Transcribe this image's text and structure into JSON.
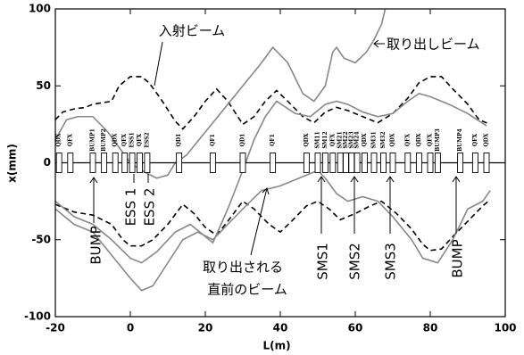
{
  "chart_data": {
    "type": "line",
    "xlabel": "L(m)",
    "ylabel": "x(mm)",
    "xlim": [
      -20,
      100
    ],
    "ylim": [
      -100,
      100
    ],
    "xticks": [
      -20,
      0,
      20,
      40,
      60,
      80,
      100
    ],
    "yticks": [
      -100,
      -50,
      0,
      50,
      100
    ],
    "grid": false,
    "series": [
      {
        "color": "#000000",
        "dashed": true,
        "x": [
          -20,
          -18,
          -15,
          -12,
          -10,
          -5,
          -3,
          0,
          3,
          5,
          8,
          12,
          14,
          17,
          20,
          23,
          26,
          30,
          33,
          36,
          39,
          42,
          46,
          49,
          52,
          55,
          58,
          62,
          66,
          70,
          74,
          77,
          80,
          83,
          86,
          90,
          93,
          96
        ],
        "values": [
          28,
          33,
          35,
          36,
          38,
          40,
          50,
          56,
          56,
          52,
          42,
          27,
          22,
          30,
          40,
          48,
          40,
          25,
          30,
          40,
          47,
          40,
          30,
          26,
          33,
          36,
          34,
          30,
          26,
          32,
          42,
          52,
          56,
          56,
          48,
          38,
          28,
          25
        ]
      },
      {
        "color": "#000000",
        "dashed": true,
        "x": [
          -20,
          -15,
          -10,
          -5,
          -2,
          0,
          3,
          6,
          10,
          14,
          17,
          20,
          23,
          26,
          30,
          33,
          37,
          40,
          43,
          47,
          50,
          53,
          56,
          60,
          64,
          67,
          71,
          75,
          78,
          80,
          83,
          86,
          90,
          94,
          96
        ],
        "values": [
          -27,
          -32,
          -34,
          -40,
          -50,
          -54,
          -54,
          -50,
          -40,
          -27,
          -33,
          -42,
          -47,
          -38,
          -25,
          -30,
          -40,
          -45,
          -38,
          -28,
          -25,
          -30,
          -37,
          -33,
          -28,
          -25,
          -33,
          -43,
          -53,
          -57,
          -56,
          -48,
          -38,
          -28,
          -24
        ]
      },
      {
        "color": "#888888",
        "dashed": false,
        "x": [
          -20,
          -17,
          -14,
          -10,
          -6,
          -3,
          0,
          3,
          7,
          10,
          12,
          15,
          20,
          25,
          30,
          35,
          38,
          42,
          46,
          49,
          52,
          54,
          55,
          57,
          60,
          63,
          65,
          67,
          68
        ],
        "values": [
          15,
          28,
          30,
          30,
          20,
          10,
          0,
          -5,
          -10,
          -8,
          0,
          5,
          20,
          35,
          50,
          65,
          75,
          65,
          45,
          40,
          50,
          72,
          75,
          68,
          65,
          72,
          80,
          90,
          100
        ]
      },
      {
        "color": "#888888",
        "dashed": false,
        "x": [
          -20,
          -15,
          -10,
          -5,
          0,
          3,
          7,
          12,
          16,
          20,
          22,
          26,
          30,
          33,
          36,
          39,
          44,
          48,
          52,
          55,
          58,
          62,
          66,
          70,
          74,
          77,
          80,
          85,
          90,
          95
        ],
        "values": [
          -25,
          -35,
          -40,
          -50,
          -62,
          -65,
          -58,
          -45,
          -40,
          -48,
          -52,
          -30,
          -5,
          15,
          30,
          40,
          32,
          30,
          38,
          40,
          38,
          33,
          30,
          32,
          40,
          45,
          43,
          38,
          32,
          24
        ]
      },
      {
        "color": "#888888",
        "dashed": false,
        "x": [
          -20,
          -15,
          -10,
          -5,
          0,
          3,
          6,
          10,
          14,
          18,
          22,
          26,
          30,
          35,
          40,
          45,
          50,
          52,
          55,
          58,
          62,
          66,
          70,
          75,
          78,
          82,
          86,
          90,
          94,
          96
        ],
        "values": [
          -30,
          -40,
          -45,
          -60,
          -75,
          -83,
          -80,
          -65,
          -50,
          -45,
          -50,
          -40,
          -30,
          -18,
          -15,
          -10,
          -5,
          -10,
          -20,
          -25,
          -22,
          -25,
          -35,
          -50,
          -62,
          -65,
          -50,
          -30,
          -25,
          -18
        ]
      }
    ],
    "elements": [
      {
        "label": "QDX",
        "x": -19
      },
      {
        "label": "QFX",
        "x": -16
      },
      {
        "label": "BUMP1",
        "x": -10
      },
      {
        "label": "BUMP2",
        "x": -7
      },
      {
        "label": "QDX",
        "x": -4
      },
      {
        "label": "QFX",
        "x": -1.5
      },
      {
        "label": "ESS1",
        "x": 0.5
      },
      {
        "label": "QFX",
        "x": 2.5
      },
      {
        "label": "ESS2",
        "x": 4.5
      },
      {
        "label": "QD1",
        "x": 13
      },
      {
        "label": "QF1",
        "x": 22
      },
      {
        "label": "QD1",
        "x": 30
      },
      {
        "label": "QF1",
        "x": 38
      },
      {
        "label": "QDX",
        "x": 47
      },
      {
        "label": "SM11",
        "x": 50
      },
      {
        "label": "SM12",
        "x": 52
      },
      {
        "label": "QFX",
        "x": 54
      },
      {
        "label": "SM21",
        "x": 56
      },
      {
        "label": "SM22",
        "x": 57.5
      },
      {
        "label": "SM23",
        "x": 59
      },
      {
        "label": "SM24",
        "x": 60.5
      },
      {
        "label": "QDX",
        "x": 62.5
      },
      {
        "label": "SM31",
        "x": 65
      },
      {
        "label": "SM32",
        "x": 67.5
      },
      {
        "label": "QDX",
        "x": 70
      },
      {
        "label": "QFX",
        "x": 74
      },
      {
        "label": "QDX",
        "x": 77
      },
      {
        "label": "QFX",
        "x": 80
      },
      {
        "label": "BUMP3",
        "x": 82
      },
      {
        "label": "BUMP4",
        "x": 88
      },
      {
        "label": "QFX",
        "x": 92
      },
      {
        "label": "QDX",
        "x": 95
      }
    ],
    "annotations": [
      "入射ビーム",
      "取り出しビーム",
      "BUMP",
      "ESS 1",
      "ESS 2",
      "取り出される",
      "直前のビーム",
      "SMS1",
      "SMS2",
      "SMS3",
      "BUMP"
    ]
  }
}
